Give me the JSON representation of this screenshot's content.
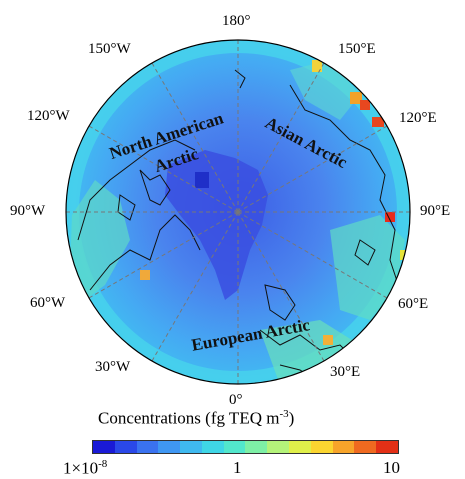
{
  "map": {
    "longitude_labels": {
      "deg_180": "180°",
      "deg_150w": "150°W",
      "deg_150e": "150°E",
      "deg_120w": "120°W",
      "deg_120e": "120°E",
      "deg_90w": "90°W",
      "deg_90e": "90°E",
      "deg_60w": "60°W",
      "deg_60e": "60°E",
      "deg_30w": "30°W",
      "deg_30e": "30°E",
      "deg_0": "0°"
    },
    "regions": {
      "north_american_line1": "North American",
      "north_american_line2": "Arctic",
      "asian": "Asian Arctic",
      "european": "European Arctic"
    },
    "colors": {
      "ocean_low": "#3b63e6",
      "ocean_mid": "#4aa8f2",
      "coast_cyan": "#3fd0ee",
      "hotspot_yellow": "#f2e23a",
      "hotspot_red": "#e82b1c"
    }
  },
  "colorbar": {
    "title_main": "Concentrations (fg TEQ m",
    "title_sup": "-3",
    "title_end": ")",
    "min_label_base": "1×10",
    "min_label_exp": "-8",
    "mid_label": "1",
    "max_label": "10",
    "colors": [
      "#1a1ad6",
      "#2a48e8",
      "#3a72f0",
      "#3f97f3",
      "#3fb9ef",
      "#3fd6e6",
      "#52e7cc",
      "#7ef0a6",
      "#b4f37a",
      "#e0ef4a",
      "#fbd530",
      "#f7a42a",
      "#ef6a20",
      "#e33016"
    ]
  }
}
